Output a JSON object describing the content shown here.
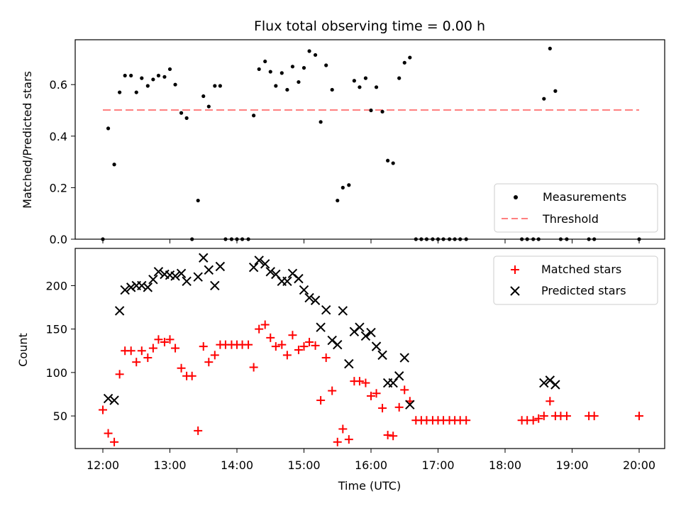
{
  "chart_data": [
    {
      "type": "scatter",
      "title": "Flux total observing time = 0.00 h",
      "ylabel": "Matched/Predicted stars",
      "xlabel": "",
      "x_unit": "hours UTC",
      "xlim": [
        11.6,
        20.4
      ],
      "ylim": [
        0,
        0.77
      ],
      "yticks": [
        "0.0",
        "0.2",
        "0.4",
        "0.6"
      ],
      "legend_position": "lower-right",
      "series": [
        {
          "name": "Measurements",
          "color": "#000000",
          "marker": "dot",
          "x": [
            12.0,
            12.08,
            12.17,
            12.25,
            12.33,
            12.42,
            12.5,
            12.58,
            12.67,
            12.75,
            12.83,
            12.92,
            13.0,
            13.08,
            13.17,
            13.25,
            13.33,
            13.42,
            13.5,
            13.58,
            13.67,
            13.75,
            13.83,
            13.92,
            14.0,
            14.08,
            14.17,
            14.25,
            14.33,
            14.42,
            14.5,
            14.58,
            14.67,
            14.75,
            14.83,
            14.92,
            15.0,
            15.08,
            15.17,
            15.25,
            15.33,
            15.42,
            15.5,
            15.58,
            15.67,
            15.75,
            15.83,
            15.92,
            16.0,
            16.08,
            16.17,
            16.25,
            16.33,
            16.42,
            16.5,
            16.58,
            16.67,
            16.75,
            16.83,
            16.92,
            17.0,
            17.08,
            17.17,
            17.25,
            17.33,
            17.42,
            18.25,
            18.33,
            18.42,
            18.5,
            18.58,
            18.67,
            18.75,
            18.83,
            18.92,
            19.25,
            19.33,
            20.0
          ],
          "y": [
            0.0,
            0.43,
            0.29,
            0.57,
            0.635,
            0.635,
            0.57,
            0.625,
            0.595,
            0.62,
            0.635,
            0.63,
            0.66,
            0.6,
            0.49,
            0.47,
            0.0,
            0.15,
            0.555,
            0.515,
            0.595,
            0.595,
            0.0,
            0.0,
            0.0,
            0.0,
            0.0,
            0.48,
            0.66,
            0.69,
            0.65,
            0.595,
            0.645,
            0.58,
            0.67,
            0.61,
            0.665,
            0.73,
            0.715,
            0.455,
            0.675,
            0.58,
            0.15,
            0.2,
            0.21,
            0.615,
            0.59,
            0.625,
            0.5,
            0.59,
            0.495,
            0.305,
            0.295,
            0.625,
            0.685,
            0.705,
            0.0,
            0.0,
            0.0,
            0.0,
            0.0,
            0.0,
            0.0,
            0.0,
            0.0,
            0.0,
            0.0,
            0.0,
            0.0,
            0.0,
            0.545,
            0.74,
            0.575,
            0.0,
            0.0,
            0.0,
            0.0,
            0.0
          ]
        },
        {
          "name": "Threshold",
          "color": "#ff7f7f",
          "style": "dashed",
          "x": [
            12.0,
            20.0
          ],
          "y": [
            0.5,
            0.5
          ]
        }
      ]
    },
    {
      "type": "scatter",
      "title": "",
      "ylabel": "Count",
      "xlabel": "Time (UTC)",
      "x_unit": "hours UTC",
      "xlim": [
        11.6,
        20.4
      ],
      "ylim": [
        9,
        240
      ],
      "yticks": [
        "50",
        "100",
        "150",
        "200"
      ],
      "xticks": [
        "12:00",
        "13:00",
        "14:00",
        "15:00",
        "16:00",
        "17:00",
        "18:00",
        "19:00",
        "20:00"
      ],
      "legend_position": "upper-right",
      "series": [
        {
          "name": "Matched stars",
          "color": "#ff0000",
          "marker": "plus",
          "x": [
            12.0,
            12.08,
            12.17,
            12.25,
            12.33,
            12.42,
            12.5,
            12.58,
            12.67,
            12.75,
            12.83,
            12.92,
            13.0,
            13.08,
            13.17,
            13.25,
            13.33,
            13.42,
            13.5,
            13.58,
            13.67,
            13.75,
            13.83,
            13.92,
            14.0,
            14.08,
            14.17,
            14.25,
            14.33,
            14.42,
            14.5,
            14.58,
            14.67,
            14.75,
            14.83,
            14.92,
            15.0,
            15.08,
            15.17,
            15.25,
            15.33,
            15.42,
            15.5,
            15.58,
            15.67,
            15.75,
            15.83,
            15.92,
            16.0,
            16.08,
            16.17,
            16.25,
            16.33,
            16.42,
            16.5,
            16.58,
            16.67,
            16.75,
            16.83,
            16.92,
            17.0,
            17.08,
            17.17,
            17.25,
            17.33,
            17.42,
            18.25,
            18.33,
            18.42,
            18.5,
            18.58,
            18.67,
            18.75,
            18.83,
            18.92,
            19.25,
            19.33,
            20.0
          ],
          "y": [
            57,
            30,
            20,
            98,
            125,
            125,
            112,
            125,
            117,
            128,
            138,
            135,
            138,
            128,
            105,
            96,
            96,
            33,
            130,
            112,
            120,
            132,
            132,
            132,
            132,
            132,
            132,
            106,
            150,
            155,
            140,
            130,
            132,
            120,
            143,
            126,
            130,
            135,
            131,
            68,
            117,
            79,
            20,
            35,
            23,
            90,
            90,
            88,
            73,
            76,
            59,
            28,
            27,
            60,
            80,
            67,
            45,
            45,
            45,
            45,
            45,
            45,
            45,
            45,
            45,
            45,
            45,
            45,
            45,
            47,
            50,
            67,
            50,
            50,
            50,
            50,
            50,
            50
          ]
        },
        {
          "name": "Predicted stars",
          "color": "#000000",
          "marker": "x",
          "x": [
            12.08,
            12.17,
            12.25,
            12.33,
            12.42,
            12.5,
            12.58,
            12.67,
            12.75,
            12.83,
            12.92,
            13.0,
            13.08,
            13.17,
            13.25,
            13.42,
            13.5,
            13.58,
            13.67,
            13.75,
            14.25,
            14.33,
            14.42,
            14.5,
            14.58,
            14.67,
            14.75,
            14.83,
            14.92,
            15.0,
            15.08,
            15.17,
            15.25,
            15.33,
            15.42,
            15.5,
            15.58,
            15.67,
            15.75,
            15.83,
            15.92,
            16.0,
            16.08,
            16.17,
            16.25,
            16.33,
            16.42,
            16.5,
            16.58,
            18.58,
            18.67,
            18.75
          ],
          "y": [
            70,
            68,
            171,
            195,
            198,
            200,
            200,
            198,
            207,
            216,
            213,
            212,
            211,
            214,
            205,
            210,
            232,
            218,
            200,
            222,
            221,
            229,
            225,
            216,
            213,
            205,
            205,
            214,
            208,
            195,
            186,
            183,
            152,
            172,
            137,
            132,
            171,
            110,
            147,
            152,
            142,
            146,
            130,
            120,
            88,
            88,
            96,
            117,
            63,
            88,
            91,
            86
          ]
        }
      ]
    }
  ]
}
